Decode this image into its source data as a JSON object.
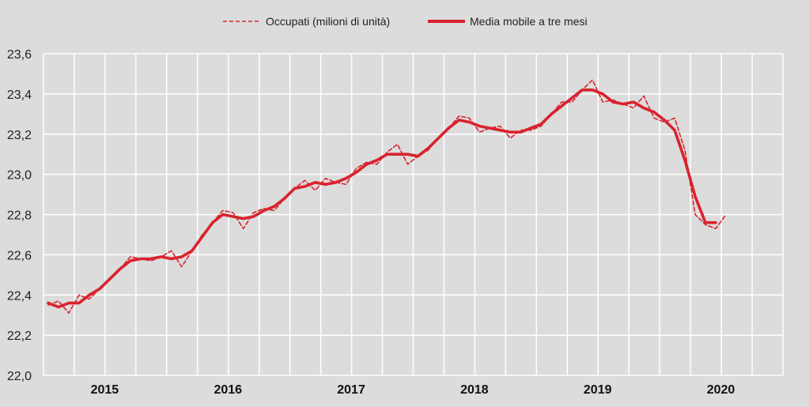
{
  "chart_data": {
    "type": "line",
    "title": "",
    "xlabel": "",
    "ylabel": "",
    "ylim": [
      22.0,
      23.6
    ],
    "yticks": [
      "22,0",
      "22,2",
      "22,4",
      "22,6",
      "22,8",
      "23,0",
      "23,2",
      "23,4",
      "23,6"
    ],
    "ytick_values": [
      22.0,
      22.2,
      22.4,
      22.6,
      22.8,
      23.0,
      23.2,
      23.4,
      23.6
    ],
    "xtick_labels": [
      "2015",
      "2016",
      "2017",
      "2018",
      "2019",
      "2020"
    ],
    "x_start": "2015-01",
    "x_end": "2020-07",
    "x_frequency": "monthly",
    "grid": true,
    "legend_placement": "top",
    "colors": {
      "series": "#d9232e",
      "background": "#dcdcdc",
      "grid": "#ffffff"
    },
    "series": [
      {
        "name": "Occupati (milioni di unità)",
        "style": "dashed",
        "values": [
          22.35,
          22.37,
          22.31,
          22.4,
          22.38,
          22.43,
          22.48,
          22.53,
          22.59,
          22.58,
          22.57,
          22.59,
          22.62,
          22.54,
          22.62,
          22.7,
          22.76,
          22.82,
          22.81,
          22.73,
          22.81,
          22.83,
          22.82,
          22.88,
          22.93,
          22.97,
          22.92,
          22.98,
          22.96,
          22.95,
          23.03,
          23.06,
          23.05,
          23.11,
          23.15,
          23.05,
          23.09,
          23.12,
          23.18,
          23.23,
          23.29,
          23.28,
          23.21,
          23.23,
          23.24,
          23.18,
          23.22,
          23.22,
          23.24,
          23.3,
          23.36,
          23.36,
          23.42,
          23.47,
          23.36,
          23.37,
          23.35,
          23.33,
          23.39,
          23.28,
          23.26,
          23.28,
          23.12,
          22.8,
          22.75,
          22.73,
          22.8
        ]
      },
      {
        "name": "Media mobile a tre mesi",
        "style": "solid",
        "values": [
          22.36,
          22.34,
          22.36,
          22.36,
          22.4,
          22.43,
          22.48,
          22.53,
          22.57,
          22.58,
          22.58,
          22.59,
          22.58,
          22.59,
          22.62,
          22.69,
          22.76,
          22.8,
          22.79,
          22.78,
          22.79,
          22.82,
          22.84,
          22.88,
          22.93,
          22.94,
          22.96,
          22.95,
          22.96,
          22.98,
          23.01,
          23.05,
          23.07,
          23.1,
          23.1,
          23.1,
          23.09,
          23.13,
          23.18,
          23.23,
          23.27,
          23.26,
          23.24,
          23.23,
          23.22,
          23.21,
          23.21,
          23.23,
          23.25,
          23.3,
          23.34,
          23.38,
          23.42,
          23.42,
          23.4,
          23.36,
          23.35,
          23.36,
          23.33,
          23.31,
          23.27,
          23.22,
          23.07,
          22.89,
          22.76,
          22.76
        ]
      }
    ]
  }
}
